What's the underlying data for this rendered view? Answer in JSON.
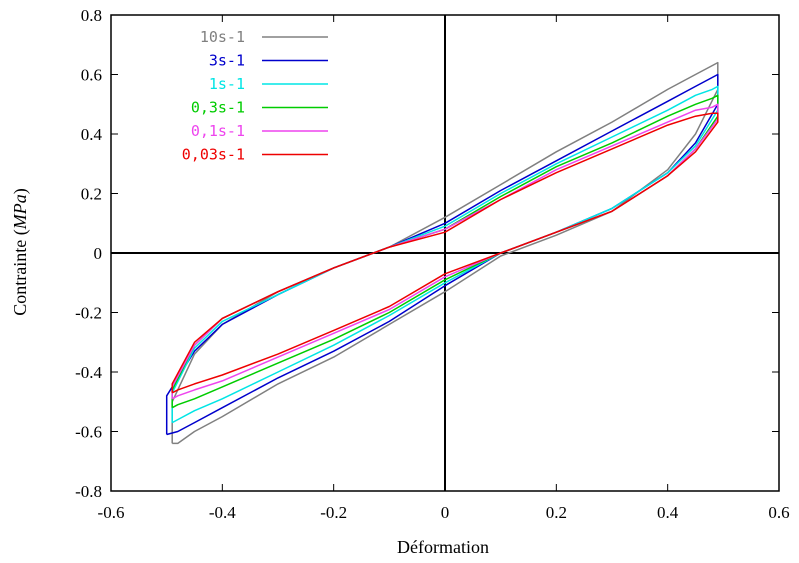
{
  "chart_data": {
    "type": "line",
    "title": "",
    "xlabel": "Déformation",
    "ylabel_prefix": "Contrainte (",
    "ylabel_unit": "MPa",
    "ylabel_suffix": ")",
    "xlim": [
      -0.6,
      0.6
    ],
    "ylim": [
      -0.8,
      0.8
    ],
    "x_ticks": [
      -0.6,
      -0.4,
      -0.2,
      0,
      0.2,
      0.4,
      0.6
    ],
    "x_tick_labels": [
      "-0.6",
      "-0.4",
      "-0.2",
      "0",
      "0.2",
      "0.4",
      "0.6"
    ],
    "y_ticks": [
      -0.8,
      -0.6,
      -0.4,
      -0.2,
      0,
      0.2,
      0.4,
      0.6,
      0.8
    ],
    "y_tick_labels": [
      "-0.8",
      "-0.6",
      "-0.4",
      "-0.2",
      "0",
      "0.2",
      "0.4",
      "0.6",
      "0.8"
    ],
    "grid": false,
    "zero_lines": true,
    "legend_position": "top-left",
    "series": [
      {
        "name": "10s-1",
        "color": "#808080",
        "x": [
          -0.49,
          -0.48,
          -0.45,
          -0.4,
          -0.3,
          -0.2,
          -0.1,
          0,
          0.1,
          0.2,
          0.3,
          0.4,
          0.45,
          0.49,
          0.49,
          0.48,
          0.45,
          0.4,
          0.3,
          0.2,
          0.1,
          0,
          -0.1,
          -0.2,
          -0.3,
          -0.4,
          -0.45,
          -0.49,
          -0.49
        ],
        "y": [
          -0.64,
          -0.64,
          -0.6,
          -0.55,
          -0.44,
          -0.35,
          -0.24,
          -0.13,
          -0.01,
          0.06,
          0.14,
          0.28,
          0.4,
          0.55,
          0.64,
          0.63,
          0.6,
          0.55,
          0.44,
          0.34,
          0.23,
          0.12,
          0.02,
          -0.05,
          -0.13,
          -0.24,
          -0.34,
          -0.5,
          -0.64
        ]
      },
      {
        "name": "3s-1",
        "color": "#0000cc",
        "x": [
          -0.5,
          -0.48,
          -0.45,
          -0.4,
          -0.3,
          -0.2,
          -0.1,
          0,
          0.1,
          0.2,
          0.3,
          0.4,
          0.45,
          0.49,
          0.49,
          0.48,
          0.45,
          0.4,
          0.3,
          0.2,
          0.1,
          0,
          -0.1,
          -0.2,
          -0.3,
          -0.4,
          -0.45,
          -0.5,
          -0.5
        ],
        "y": [
          -0.61,
          -0.6,
          -0.57,
          -0.52,
          -0.42,
          -0.33,
          -0.23,
          -0.11,
          0,
          0.07,
          0.15,
          0.27,
          0.37,
          0.5,
          0.6,
          0.59,
          0.56,
          0.51,
          0.41,
          0.31,
          0.21,
          0.1,
          0.02,
          -0.05,
          -0.14,
          -0.24,
          -0.33,
          -0.48,
          -0.61
        ]
      },
      {
        "name": "1s-1",
        "color": "#00e5e5",
        "x": [
          -0.49,
          -0.48,
          -0.45,
          -0.4,
          -0.3,
          -0.2,
          -0.1,
          0,
          0.1,
          0.2,
          0.3,
          0.4,
          0.45,
          0.49,
          0.49,
          0.48,
          0.45,
          0.4,
          0.3,
          0.2,
          0.1,
          0,
          -0.1,
          -0.2,
          -0.3,
          -0.4,
          -0.45,
          -0.49,
          -0.49
        ],
        "y": [
          -0.57,
          -0.56,
          -0.53,
          -0.49,
          -0.4,
          -0.31,
          -0.21,
          -0.1,
          0,
          0.07,
          0.15,
          0.27,
          0.36,
          0.48,
          0.56,
          0.55,
          0.53,
          0.48,
          0.39,
          0.3,
          0.2,
          0.09,
          0.02,
          -0.05,
          -0.14,
          -0.23,
          -0.32,
          -0.47,
          -0.57
        ]
      },
      {
        "name": "0,3s-1",
        "color": "#00cc00",
        "x": [
          -0.49,
          -0.48,
          -0.45,
          -0.4,
          -0.3,
          -0.2,
          -0.1,
          0,
          0.1,
          0.2,
          0.3,
          0.4,
          0.45,
          0.49,
          0.49,
          0.48,
          0.45,
          0.4,
          0.3,
          0.2,
          0.1,
          0,
          -0.1,
          -0.2,
          -0.3,
          -0.4,
          -0.45,
          -0.49,
          -0.49
        ],
        "y": [
          -0.52,
          -0.51,
          -0.49,
          -0.45,
          -0.37,
          -0.29,
          -0.2,
          -0.09,
          0,
          0.07,
          0.14,
          0.26,
          0.35,
          0.46,
          0.53,
          0.52,
          0.5,
          0.46,
          0.37,
          0.29,
          0.19,
          0.08,
          0.02,
          -0.05,
          -0.13,
          -0.22,
          -0.31,
          -0.46,
          -0.52
        ]
      },
      {
        "name": "0,1s-1",
        "color": "#ee44ee",
        "x": [
          -0.49,
          -0.48,
          -0.45,
          -0.4,
          -0.3,
          -0.2,
          -0.1,
          0,
          0.1,
          0.2,
          0.3,
          0.4,
          0.45,
          0.49,
          0.49,
          0.48,
          0.45,
          0.4,
          0.3,
          0.2,
          0.1,
          0,
          -0.1,
          -0.2,
          -0.3,
          -0.4,
          -0.45,
          -0.49,
          -0.49
        ],
        "y": [
          -0.49,
          -0.48,
          -0.46,
          -0.43,
          -0.35,
          -0.27,
          -0.19,
          -0.08,
          0,
          0.07,
          0.14,
          0.26,
          0.35,
          0.45,
          0.5,
          0.49,
          0.48,
          0.44,
          0.36,
          0.28,
          0.18,
          0.08,
          0.02,
          -0.05,
          -0.13,
          -0.22,
          -0.31,
          -0.45,
          -0.49
        ]
      },
      {
        "name": "0,03s-1",
        "color": "#ee0000",
        "x": [
          -0.49,
          -0.48,
          -0.45,
          -0.4,
          -0.3,
          -0.2,
          -0.1,
          0,
          0.1,
          0.2,
          0.3,
          0.4,
          0.45,
          0.49,
          0.49,
          0.48,
          0.45,
          0.4,
          0.3,
          0.2,
          0.1,
          0,
          -0.1,
          -0.2,
          -0.3,
          -0.4,
          -0.45,
          -0.49,
          -0.49
        ],
        "y": [
          -0.47,
          -0.46,
          -0.44,
          -0.41,
          -0.34,
          -0.26,
          -0.18,
          -0.07,
          0,
          0.07,
          0.14,
          0.26,
          0.34,
          0.44,
          0.47,
          0.47,
          0.46,
          0.43,
          0.35,
          0.27,
          0.18,
          0.07,
          0.02,
          -0.05,
          -0.13,
          -0.22,
          -0.3,
          -0.44,
          -0.47
        ]
      }
    ]
  }
}
